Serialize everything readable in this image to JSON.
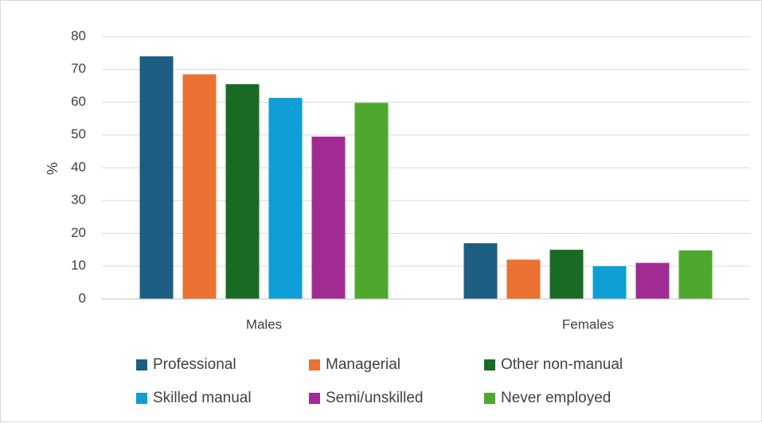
{
  "chart_data": {
    "type": "bar",
    "title": "",
    "xlabel": "",
    "ylabel": "%",
    "ylim": [
      0,
      80
    ],
    "yticks": [
      0,
      10,
      20,
      30,
      40,
      50,
      60,
      70,
      80
    ],
    "grid": true,
    "legend_position": "bottom",
    "categories": [
      "Males",
      "Females"
    ],
    "series": [
      {
        "name": "Professional",
        "color": "#1b5e82",
        "values": [
          74,
          17
        ]
      },
      {
        "name": "Managerial",
        "color": "#e97132",
        "values": [
          68.5,
          12
        ]
      },
      {
        "name": "Other non-manual",
        "color": "#196b24",
        "values": [
          65.5,
          15
        ]
      },
      {
        "name": "Skilled manual",
        "color": "#0f9ed5",
        "values": [
          61.3,
          10
        ]
      },
      {
        "name": "Semi/unskilled",
        "color": "#a02b93",
        "values": [
          49.5,
          11
        ]
      },
      {
        "name": "Never employed",
        "color": "#4ea72e",
        "values": [
          59.8,
          14.8
        ]
      }
    ]
  }
}
